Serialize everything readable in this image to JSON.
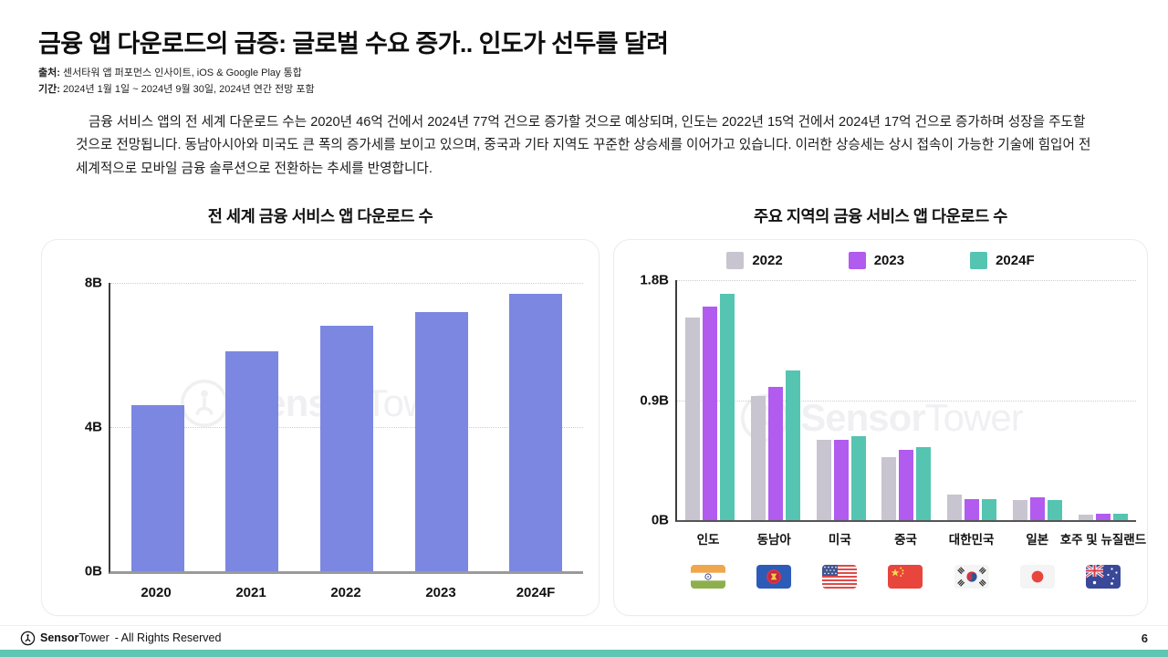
{
  "page": {
    "title": "금융 앱 다운로드의 급증: 글로벌 수요 증가.. 인도가 선두를 달려",
    "source": {
      "label": "출처:",
      "text": "센서타워 앱 퍼포먼스 인사이트, iOS & Google Play 통합"
    },
    "period": {
      "label": "기간:",
      "text": "2024년 1월 1일 ~ 2024년 9월 30일, 2024년 연간 전망 포함"
    },
    "summary": "금융 서비스 앱의 전 세계 다운로드 수는 2020년 46억 건에서 2024년 77억 건으로 증가할 것으로 예상되며, 인도는 2022년 15억 건에서 2024년 17억 건으로 증가하며 성장을 주도할 것으로 전망됩니다. 동남아시아와 미국도 큰 폭의 증가세를 보이고 있으며, 중국과 기타 지역도 꾸준한 상승세를 이어가고 있습니다. 이러한 상승세는 상시 접속이 가능한 기술에 힘입어 전 세계적으로 모바일 금융 솔루션으로 전환하는 추세를 반영합니다.",
    "watermark_bold": "Sensor",
    "watermark_light": "Tower",
    "footer": {
      "brand_bold": "Sensor",
      "brand_light": "Tower",
      "rights": "- All Rights Reserved",
      "page_number": "6"
    }
  },
  "colors": {
    "accent_bottom_bar": "#5FC6B3",
    "worldwide_bar": "#7B87E0",
    "series_2022": "#C8C4D0",
    "series_2023": "#B15BEF",
    "series_2024f": "#55C4B1"
  },
  "chart_data": [
    {
      "type": "bar",
      "title": "전 세계 금융 서비스 앱 다운로드 수",
      "unit": "billions of downloads (B)",
      "categories": [
        "2020",
        "2021",
        "2022",
        "2023",
        "2024F"
      ],
      "values": [
        4.6,
        6.1,
        6.8,
        7.2,
        7.7
      ],
      "bar_color": "#7B87E0",
      "ylim": [
        0,
        8
      ],
      "yticks": [
        {
          "value": 8,
          "label": "8B"
        },
        {
          "value": 4,
          "label": "4B"
        },
        {
          "value": 0,
          "label": "0B"
        }
      ],
      "grid": "horizontal dotted",
      "legend_position": "none"
    },
    {
      "type": "bar",
      "title": "주요 지역의 금융 서비스 앱 다운로드 수",
      "unit": "billions of downloads (B)",
      "categories": [
        "인도",
        "동남아",
        "미국",
        "중국",
        "대한민국",
        "일본",
        "호주 및 뉴질랜드"
      ],
      "series": [
        {
          "name": "2022",
          "color": "#C8C4D0",
          "values": [
            1.52,
            0.93,
            0.6,
            0.47,
            0.19,
            0.15,
            0.04
          ]
        },
        {
          "name": "2023",
          "color": "#B15BEF",
          "values": [
            1.6,
            1.0,
            0.6,
            0.53,
            0.16,
            0.17,
            0.05
          ]
        },
        {
          "name": "2024F",
          "color": "#55C4B1",
          "values": [
            1.7,
            1.12,
            0.63,
            0.55,
            0.16,
            0.15,
            0.05
          ]
        }
      ],
      "ylim": [
        0,
        1.8
      ],
      "yticks": [
        {
          "value": 1.8,
          "label": "1.8B"
        },
        {
          "value": 0.9,
          "label": "0.9B"
        },
        {
          "value": 0,
          "label": "0B"
        }
      ],
      "grid": "horizontal dotted",
      "legend_position": "top",
      "flags": [
        "india",
        "asean",
        "usa",
        "china",
        "south-korea",
        "japan",
        "australia-nz"
      ]
    }
  ]
}
